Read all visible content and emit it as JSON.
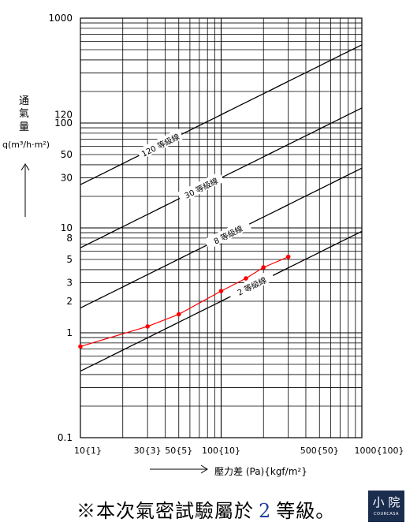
{
  "chart_data": {
    "type": "line",
    "x_scale": "log",
    "y_scale": "log",
    "xlim": [
      10,
      1000
    ],
    "ylim": [
      0.1,
      1000
    ],
    "grid": true,
    "x_tick_labels": [
      {
        "x": 10,
        "label": "10{1}"
      },
      {
        "x": 30,
        "label": "30{3}"
      },
      {
        "x": 50,
        "label": "50{5}"
      },
      {
        "x": 100,
        "label": "100{10}"
      },
      {
        "x": 500,
        "label": "500{50}"
      },
      {
        "x": 1000,
        "label": "1000{100}"
      }
    ],
    "y_tick_labels": [
      {
        "y": 1000,
        "label": "1000"
      },
      {
        "y": 120,
        "label": "120"
      },
      {
        "y": 100,
        "label": "100"
      },
      {
        "y": 50,
        "label": "50"
      },
      {
        "y": 30,
        "label": "30"
      },
      {
        "y": 10,
        "label": "10"
      },
      {
        "y": 8,
        "label": "8"
      },
      {
        "y": 5,
        "label": "5"
      },
      {
        "y": 3,
        "label": "3"
      },
      {
        "y": 2,
        "label": "2"
      },
      {
        "y": 1,
        "label": "1"
      },
      {
        "y": 0.1,
        "label": "0.1"
      }
    ],
    "ylabel_lines": [
      "通",
      "氣",
      "量",
      "q(m³/h·m²)"
    ],
    "xlabel": "壓力差 (Pa){kgf/m²}",
    "grade_lines": [
      {
        "name": "120 等級線",
        "q_at_100": 120,
        "color": "#000000"
      },
      {
        "name": "30 等級線",
        "q_at_100": 30,
        "color": "#000000"
      },
      {
        "name": "8 等級線",
        "q_at_100": 8,
        "color": "#000000"
      },
      {
        "name": "2 等級線",
        "q_at_100": 2,
        "color": "#000000"
      }
    ],
    "series": [
      {
        "color": "#ff0000",
        "x": [
          10,
          30,
          50,
          100,
          150,
          200,
          300
        ],
        "y": [
          0.74,
          1.15,
          1.5,
          2.5,
          3.3,
          4.2,
          5.3
        ]
      }
    ]
  },
  "caption": {
    "prefix": "※本次氣密試驗屬於",
    "number": "2",
    "suffix": "等級。"
  },
  "logo": {
    "title": "小 院",
    "subtitle": "COURCASA"
  }
}
